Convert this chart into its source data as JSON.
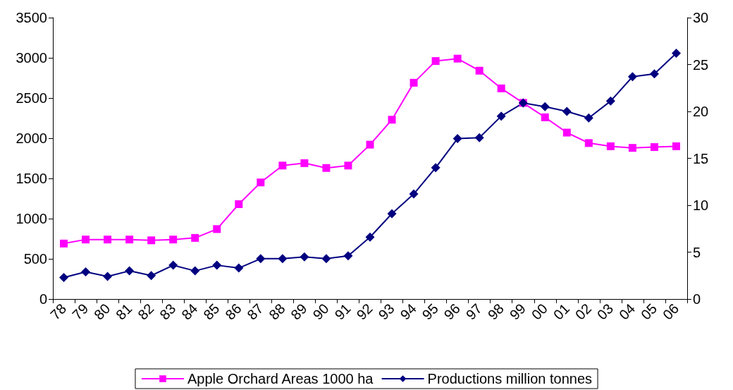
{
  "chart_data": {
    "type": "line",
    "categories": [
      "78",
      "79",
      "80",
      "81",
      "82",
      "83",
      "84",
      "85",
      "86",
      "87",
      "88",
      "89",
      "90",
      "91",
      "92",
      "93",
      "94",
      "95",
      "96",
      "97",
      "98",
      "99",
      "00",
      "01",
      "02",
      "03",
      "04",
      "05",
      "06"
    ],
    "series": [
      {
        "name": "Apple Orchard Areas 1000 ha",
        "color": "#ff00ff",
        "marker": "square",
        "values": [
          690,
          740,
          740,
          740,
          730,
          740,
          760,
          870,
          1180,
          1450,
          1660,
          1690,
          1630,
          1660,
          1920,
          2230,
          2690,
          2960,
          2990,
          2840,
          2620,
          2440,
          2260,
          2070,
          1940,
          1900,
          1880,
          1890,
          1900
        ]
      },
      {
        "name": "Productions million tonnes",
        "color": "#000080",
        "marker": "diamond",
        "axis": "y2",
        "values": [
          2.3,
          2.9,
          2.4,
          3.0,
          2.5,
          3.6,
          3.0,
          3.6,
          3.3,
          4.3,
          4.3,
          4.5,
          4.3,
          4.6,
          6.6,
          9.1,
          11.2,
          14.0,
          17.1,
          17.2,
          19.5,
          20.9,
          20.5,
          20.0,
          19.3,
          21.1,
          23.7,
          24.0,
          26.2
        ]
      }
    ],
    "ylim": [
      0,
      3500
    ],
    "yticks": [
      0,
      500,
      1000,
      1500,
      2000,
      2500,
      3000,
      3500
    ],
    "y2lim": [
      0,
      30
    ],
    "y2ticks": [
      0,
      5,
      10,
      15,
      20,
      25,
      30
    ],
    "grid": false,
    "legend": "bottom",
    "line_style": "solid"
  }
}
